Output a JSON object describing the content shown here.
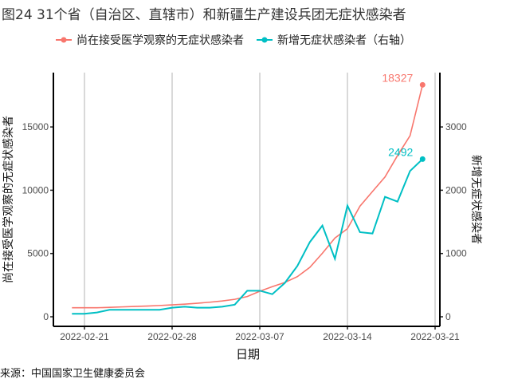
{
  "title": "图24 31个省（自治区、直辖市）和新疆生产建设兵团无症状感染者",
  "source": "来源：中国国家卫生健康委员会",
  "chart_data": {
    "type": "line",
    "title": "图24 31个省（自治区、直辖市）和新疆生产建设兵团无症状感染者",
    "xlabel": "日期",
    "ylabel": "尚在接受医学观察的无症状感染者",
    "ylabel_right": "新增无症状感染者",
    "x_ticks": [
      "2022-02-21",
      "2022-02-28",
      "2022-03-07",
      "2022-03-14",
      "2022-03-21"
    ],
    "y_ticks_left": [
      "0",
      "5000",
      "10000",
      "15000"
    ],
    "y_ticks_right": [
      "0",
      "1000",
      "2000",
      "3000"
    ],
    "ylim_left": [
      0,
      18900
    ],
    "ylim_right": [
      0,
      3780
    ],
    "grid": "vertical major x",
    "legend_position": "top",
    "x": [
      "2022-02-20",
      "2022-02-21",
      "2022-02-22",
      "2022-02-23",
      "2022-02-24",
      "2022-02-25",
      "2022-02-26",
      "2022-02-27",
      "2022-02-28",
      "2022-03-01",
      "2022-03-02",
      "2022-03-03",
      "2022-03-04",
      "2022-03-05",
      "2022-03-06",
      "2022-03-07",
      "2022-03-08",
      "2022-03-09",
      "2022-03-10",
      "2022-03-11",
      "2022-03-12",
      "2022-03-13",
      "2022-03-14",
      "2022-03-15",
      "2022-03-16",
      "2022-03-17",
      "2022-03-18",
      "2022-03-19",
      "2022-03-20"
    ],
    "series": [
      {
        "name": "尚在接受医学观察的无症状感染者",
        "axis": "left",
        "color": "#F8766D",
        "values": [
          712,
          712,
          712,
          745,
          780,
          815,
          850,
          890,
          940,
          1000,
          1070,
          1150,
          1250,
          1380,
          1600,
          2020,
          2380,
          2710,
          3170,
          3910,
          5020,
          6220,
          6960,
          8740,
          9900,
          11050,
          12740,
          14310,
          18327
        ],
        "end_label": "18327"
      },
      {
        "name": "新增无症状感染者（右轴）",
        "axis": "right",
        "color": "#00BFC4",
        "values": [
          47,
          47,
          68,
          110,
          110,
          110,
          110,
          110,
          143,
          159,
          143,
          143,
          159,
          191,
          412,
          412,
          357,
          534,
          803,
          1181,
          1441,
          916,
          1757,
          1337,
          1316,
          1895,
          1820,
          2304,
          2492
        ],
        "end_label": "2492"
      }
    ]
  }
}
